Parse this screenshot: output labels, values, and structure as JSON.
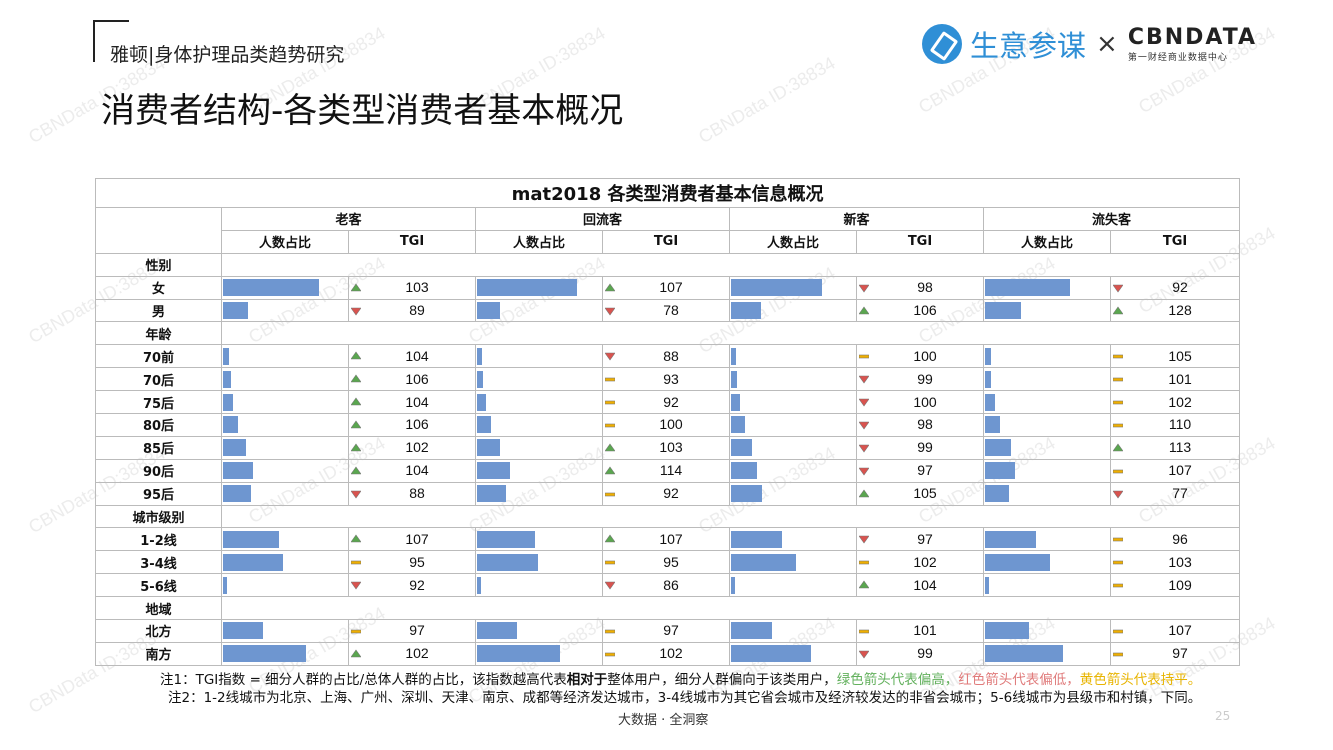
{
  "header": {
    "brand": "雅顿|身体护理品类趋势研究",
    "logo_left": "生意参谋",
    "logo_x": "×",
    "logo_right": "CBNDATA",
    "logo_right_sub": "第一财经商业数据中心"
  },
  "title": "消费者结构-各类型消费者基本概况",
  "watermark": "CBNData ID:38834",
  "table": {
    "caption": "mat2018 各类型消费者基本信息概况",
    "groups": [
      "老客",
      "回流客",
      "新客",
      "流失客"
    ],
    "sub_headers": [
      "人数占比",
      "TGI"
    ],
    "arrow_colors": {
      "up": "#5aa64f",
      "down": "#d9534f",
      "flat": "#f0b000"
    },
    "sections": [
      {
        "name": "性别",
        "rows": [
          {
            "label": "女",
            "cells": [
              {
                "share": 0.77,
                "tgi": "103",
                "arrow": "up"
              },
              {
                "share": 0.8,
                "tgi": "107",
                "arrow": "up"
              },
              {
                "share": 0.73,
                "tgi": "98",
                "arrow": "down"
              },
              {
                "share": 0.68,
                "tgi": "92",
                "arrow": "down"
              }
            ]
          },
          {
            "label": "男",
            "cells": [
              {
                "share": 0.2,
                "tgi": "89",
                "arrow": "down"
              },
              {
                "share": 0.18,
                "tgi": "78",
                "arrow": "down"
              },
              {
                "share": 0.24,
                "tgi": "106",
                "arrow": "up"
              },
              {
                "share": 0.29,
                "tgi": "128",
                "arrow": "up"
              }
            ]
          }
        ]
      },
      {
        "name": "年龄",
        "rows": [
          {
            "label": "70前",
            "cells": [
              {
                "share": 0.05,
                "tgi": "104",
                "arrow": "up"
              },
              {
                "share": 0.04,
                "tgi": "88",
                "arrow": "down"
              },
              {
                "share": 0.04,
                "tgi": "100",
                "arrow": "flat"
              },
              {
                "share": 0.05,
                "tgi": "105",
                "arrow": "flat"
              }
            ]
          },
          {
            "label": "70后",
            "cells": [
              {
                "share": 0.06,
                "tgi": "106",
                "arrow": "up"
              },
              {
                "share": 0.05,
                "tgi": "93",
                "arrow": "flat"
              },
              {
                "share": 0.05,
                "tgi": "99",
                "arrow": "down"
              },
              {
                "share": 0.05,
                "tgi": "101",
                "arrow": "flat"
              }
            ]
          },
          {
            "label": "75后",
            "cells": [
              {
                "share": 0.08,
                "tgi": "104",
                "arrow": "up"
              },
              {
                "share": 0.07,
                "tgi": "92",
                "arrow": "flat"
              },
              {
                "share": 0.07,
                "tgi": "100",
                "arrow": "down"
              },
              {
                "share": 0.08,
                "tgi": "102",
                "arrow": "flat"
              }
            ]
          },
          {
            "label": "80后",
            "cells": [
              {
                "share": 0.12,
                "tgi": "106",
                "arrow": "up"
              },
              {
                "share": 0.11,
                "tgi": "100",
                "arrow": "flat"
              },
              {
                "share": 0.11,
                "tgi": "98",
                "arrow": "down"
              },
              {
                "share": 0.12,
                "tgi": "110",
                "arrow": "flat"
              }
            ]
          },
          {
            "label": "85后",
            "cells": [
              {
                "share": 0.18,
                "tgi": "102",
                "arrow": "up"
              },
              {
                "share": 0.18,
                "tgi": "103",
                "arrow": "up"
              },
              {
                "share": 0.17,
                "tgi": "99",
                "arrow": "down"
              },
              {
                "share": 0.21,
                "tgi": "113",
                "arrow": "up"
              }
            ]
          },
          {
            "label": "90后",
            "cells": [
              {
                "share": 0.24,
                "tgi": "104",
                "arrow": "up"
              },
              {
                "share": 0.26,
                "tgi": "114",
                "arrow": "up"
              },
              {
                "share": 0.21,
                "tgi": "97",
                "arrow": "down"
              },
              {
                "share": 0.24,
                "tgi": "107",
                "arrow": "flat"
              }
            ]
          },
          {
            "label": "95后",
            "cells": [
              {
                "share": 0.22,
                "tgi": "88",
                "arrow": "down"
              },
              {
                "share": 0.23,
                "tgi": "92",
                "arrow": "flat"
              },
              {
                "share": 0.25,
                "tgi": "105",
                "arrow": "up"
              },
              {
                "share": 0.19,
                "tgi": "77",
                "arrow": "down"
              }
            ]
          }
        ]
      },
      {
        "name": "城市级别",
        "rows": [
          {
            "label": "1-2线",
            "cells": [
              {
                "share": 0.45,
                "tgi": "107",
                "arrow": "up"
              },
              {
                "share": 0.46,
                "tgi": "107",
                "arrow": "up"
              },
              {
                "share": 0.41,
                "tgi": "97",
                "arrow": "down"
              },
              {
                "share": 0.41,
                "tgi": "96",
                "arrow": "flat"
              }
            ]
          },
          {
            "label": "3-4线",
            "cells": [
              {
                "share": 0.48,
                "tgi": "95",
                "arrow": "flat"
              },
              {
                "share": 0.49,
                "tgi": "95",
                "arrow": "flat"
              },
              {
                "share": 0.52,
                "tgi": "102",
                "arrow": "flat"
              },
              {
                "share": 0.52,
                "tgi": "103",
                "arrow": "flat"
              }
            ]
          },
          {
            "label": "5-6线",
            "cells": [
              {
                "share": 0.03,
                "tgi": "92",
                "arrow": "down"
              },
              {
                "share": 0.03,
                "tgi": "86",
                "arrow": "down"
              },
              {
                "share": 0.03,
                "tgi": "104",
                "arrow": "up"
              },
              {
                "share": 0.03,
                "tgi": "109",
                "arrow": "flat"
              }
            ]
          }
        ]
      },
      {
        "name": "地域",
        "rows": [
          {
            "label": "北方",
            "cells": [
              {
                "share": 0.32,
                "tgi": "97",
                "arrow": "flat"
              },
              {
                "share": 0.32,
                "tgi": "97",
                "arrow": "flat"
              },
              {
                "share": 0.33,
                "tgi": "101",
                "arrow": "flat"
              },
              {
                "share": 0.35,
                "tgi": "107",
                "arrow": "flat"
              }
            ]
          },
          {
            "label": "南方",
            "cells": [
              {
                "share": 0.66,
                "tgi": "102",
                "arrow": "up"
              },
              {
                "share": 0.66,
                "tgi": "102",
                "arrow": "flat"
              },
              {
                "share": 0.64,
                "tgi": "99",
                "arrow": "down"
              },
              {
                "share": 0.62,
                "tgi": "97",
                "arrow": "flat"
              }
            ]
          }
        ]
      }
    ]
  },
  "notes": {
    "note1_prefix": "注1：TGI指数 = 细分人群的占比/总体人群的占比，该指数越高代表",
    "note1_bold": "相对于",
    "note1_mid": "整体用户，细分人群偏向于该类用户，",
    "note1_green": "绿色箭头代表偏高，",
    "note1_red": "红色箭头代表偏低，",
    "note1_yellow": "黄色箭头代表持平。",
    "note2": "注2：1-2线城市为北京、上海、广州、深圳、天津、南京、成都等经济发达城市，3-4线城市为其它省会城市及经济较发达的非省会城市；5-6线城市为县级市和村镇，下同。"
  },
  "footer": "大数据 · 全洞察",
  "page_number": "25"
}
